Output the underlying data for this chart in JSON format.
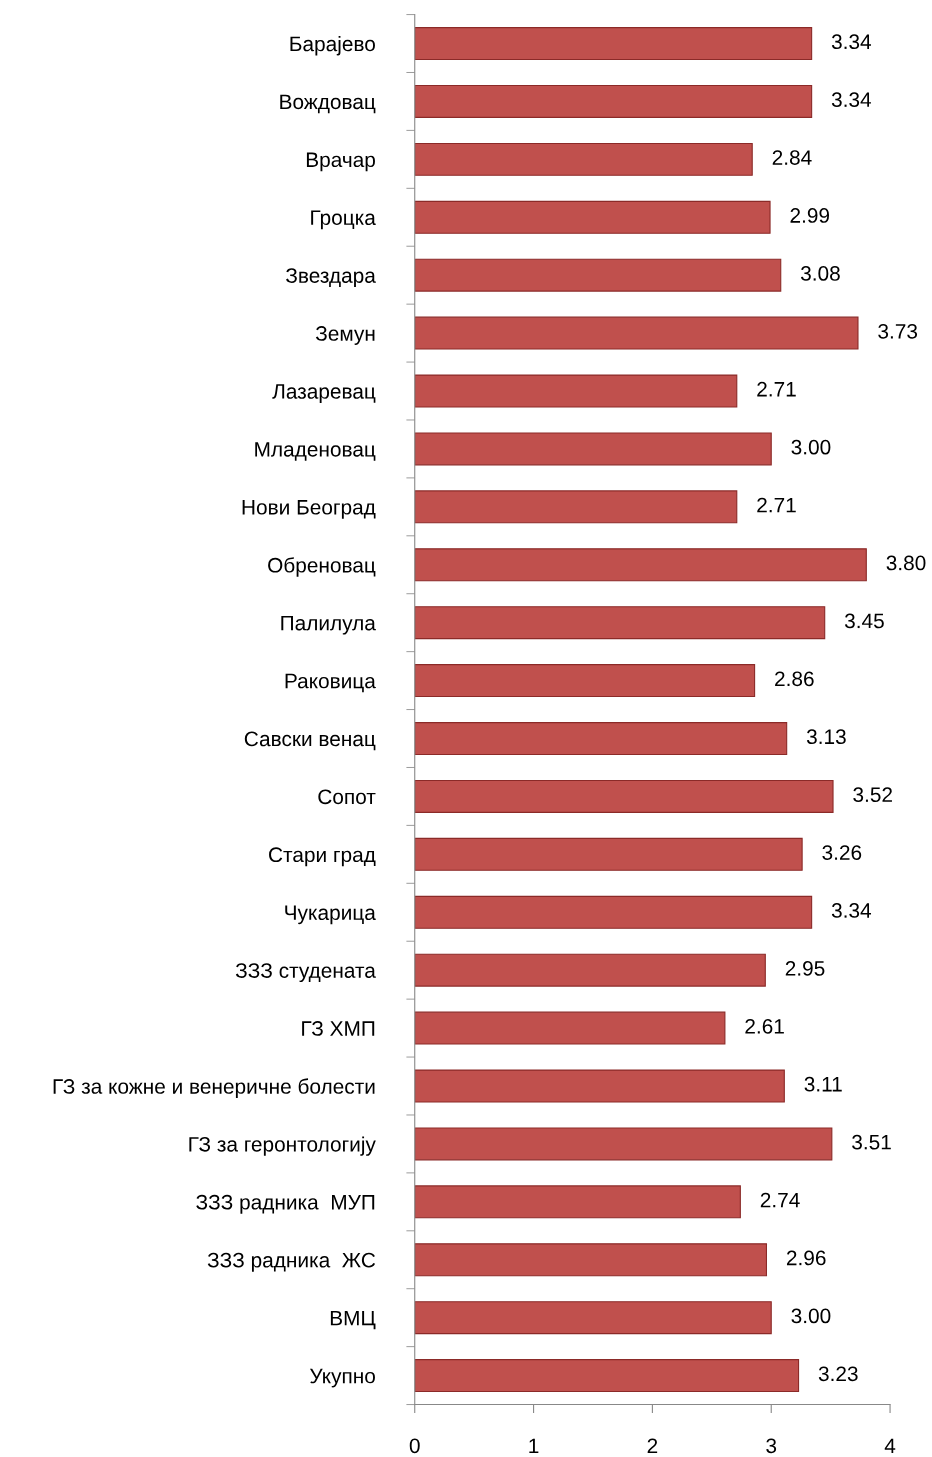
{
  "chart_data": {
    "type": "bar",
    "orientation": "horizontal",
    "categories": [
      "Барајево",
      "Вождовац",
      "Врачар",
      "Гроцка",
      "Звездара",
      "Земун",
      "Лазаревац",
      "Младеновац",
      "Нови Београд",
      "Обреновац",
      "Палилула",
      "Раковица",
      "Савски венац",
      "Сопот",
      "Стари град",
      "Чукарица",
      "ЗЗЗ студената",
      "ГЗ ХМП",
      "ГЗ за кожне и венеричне болести",
      "ГЗ за геронтологију",
      "ЗЗЗ радника  МУП",
      "ЗЗЗ радника  ЖС",
      "ВМЦ",
      "Укупно"
    ],
    "values": [
      3.34,
      3.34,
      2.84,
      2.99,
      3.08,
      3.73,
      2.71,
      3.0,
      2.71,
      3.8,
      3.45,
      2.86,
      3.13,
      3.52,
      3.26,
      3.34,
      2.95,
      2.61,
      3.11,
      3.51,
      2.74,
      2.96,
      3.0,
      3.23
    ],
    "value_labels": [
      "3.34",
      "3.34",
      "2.84",
      "2.99",
      "3.08",
      "3.73",
      "2.71",
      "3.00",
      "2.71",
      "3.80",
      "3.45",
      "2.86",
      "3.13",
      "3.52",
      "3.26",
      "3.34",
      "2.95",
      "2.61",
      "3.11",
      "3.51",
      "2.74",
      "2.96",
      "3.00",
      "3.23"
    ],
    "color": "#c0504d",
    "xlim": [
      0,
      4
    ],
    "xticks": [
      0,
      1,
      2,
      3,
      4
    ],
    "grid": false,
    "legend": false
  }
}
